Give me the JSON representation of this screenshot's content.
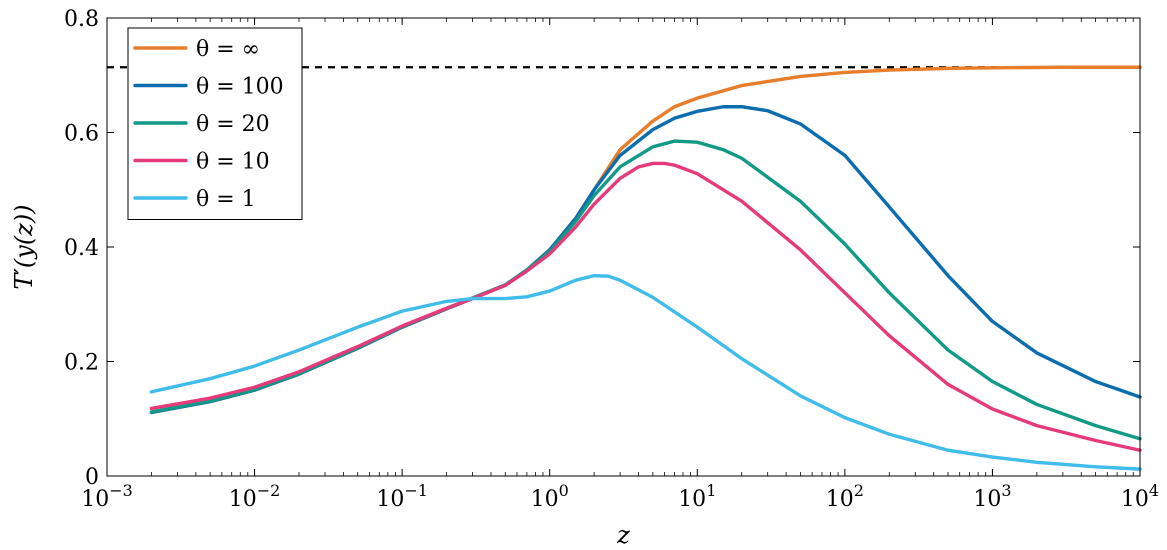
{
  "chart_data": {
    "type": "line",
    "xscale": "log",
    "xlabel": "z",
    "ylabel": "T′(y(z))",
    "xlim": [
      0.001,
      10000
    ],
    "ylim": [
      0,
      0.8
    ],
    "grid": false,
    "legend_position": "top-left",
    "x_ticks": [
      {
        "value": 0.001,
        "base": "10",
        "exp": "−3"
      },
      {
        "value": 0.01,
        "base": "10",
        "exp": "−2"
      },
      {
        "value": 0.1,
        "base": "10",
        "exp": "−1"
      },
      {
        "value": 1,
        "base": "10",
        "exp": "0"
      },
      {
        "value": 10,
        "base": "10",
        "exp": "1"
      },
      {
        "value": 100,
        "base": "10",
        "exp": "2"
      },
      {
        "value": 1000,
        "base": "10",
        "exp": "3"
      },
      {
        "value": 10000,
        "base": "10",
        "exp": "4"
      }
    ],
    "y_ticks": [
      {
        "value": 0,
        "label": "0"
      },
      {
        "value": 0.2,
        "label": "0.2"
      },
      {
        "value": 0.4,
        "label": "0.4"
      },
      {
        "value": 0.6,
        "label": "0.6"
      },
      {
        "value": 0.8,
        "label": "0.8"
      }
    ],
    "reference_line": {
      "y": 0.714,
      "style": "dashed",
      "color": "#000000"
    },
    "series": [
      {
        "name": "θ = ∞",
        "color": "#e87d2c",
        "points": [
          [
            0.002,
            0.111
          ],
          [
            0.005,
            0.13
          ],
          [
            0.01,
            0.15
          ],
          [
            0.02,
            0.178
          ],
          [
            0.05,
            0.223
          ],
          [
            0.1,
            0.26
          ],
          [
            0.2,
            0.292
          ],
          [
            0.3,
            0.31
          ],
          [
            0.5,
            0.333
          ],
          [
            0.7,
            0.36
          ],
          [
            1,
            0.395
          ],
          [
            1.5,
            0.45
          ],
          [
            2,
            0.5
          ],
          [
            3,
            0.57
          ],
          [
            5,
            0.62
          ],
          [
            7,
            0.645
          ],
          [
            10,
            0.66
          ],
          [
            20,
            0.682
          ],
          [
            50,
            0.698
          ],
          [
            100,
            0.705
          ],
          [
            200,
            0.709
          ],
          [
            500,
            0.712
          ],
          [
            1000,
            0.713
          ],
          [
            3000,
            0.714
          ],
          [
            10000,
            0.714
          ]
        ]
      },
      {
        "name": "θ = 100",
        "color": "#0b6dae",
        "points": [
          [
            0.002,
            0.111
          ],
          [
            0.005,
            0.13
          ],
          [
            0.01,
            0.15
          ],
          [
            0.02,
            0.178
          ],
          [
            0.05,
            0.223
          ],
          [
            0.1,
            0.26
          ],
          [
            0.2,
            0.292
          ],
          [
            0.3,
            0.31
          ],
          [
            0.5,
            0.333
          ],
          [
            0.7,
            0.36
          ],
          [
            1,
            0.395
          ],
          [
            1.5,
            0.45
          ],
          [
            2,
            0.5
          ],
          [
            3,
            0.56
          ],
          [
            5,
            0.605
          ],
          [
            7,
            0.625
          ],
          [
            10,
            0.637
          ],
          [
            15,
            0.645
          ],
          [
            20,
            0.645
          ],
          [
            30,
            0.638
          ],
          [
            50,
            0.615
          ],
          [
            100,
            0.56
          ],
          [
            200,
            0.47
          ],
          [
            500,
            0.35
          ],
          [
            1000,
            0.27
          ],
          [
            2000,
            0.215
          ],
          [
            5000,
            0.165
          ],
          [
            10000,
            0.138
          ]
        ]
      },
      {
        "name": "θ = 20",
        "color": "#119a86",
        "points": [
          [
            0.002,
            0.112
          ],
          [
            0.005,
            0.131
          ],
          [
            0.01,
            0.151
          ],
          [
            0.02,
            0.179
          ],
          [
            0.05,
            0.224
          ],
          [
            0.1,
            0.261
          ],
          [
            0.2,
            0.293
          ],
          [
            0.3,
            0.311
          ],
          [
            0.5,
            0.334
          ],
          [
            0.7,
            0.36
          ],
          [
            1,
            0.392
          ],
          [
            1.5,
            0.445
          ],
          [
            2,
            0.49
          ],
          [
            3,
            0.54
          ],
          [
            5,
            0.575
          ],
          [
            7,
            0.585
          ],
          [
            10,
            0.583
          ],
          [
            15,
            0.57
          ],
          [
            20,
            0.555
          ],
          [
            50,
            0.48
          ],
          [
            100,
            0.405
          ],
          [
            200,
            0.32
          ],
          [
            500,
            0.22
          ],
          [
            1000,
            0.165
          ],
          [
            2000,
            0.125
          ],
          [
            5000,
            0.088
          ],
          [
            10000,
            0.065
          ]
        ]
      },
      {
        "name": "θ = 10",
        "color": "#e53b7b",
        "points": [
          [
            0.002,
            0.118
          ],
          [
            0.005,
            0.136
          ],
          [
            0.01,
            0.155
          ],
          [
            0.02,
            0.182
          ],
          [
            0.05,
            0.226
          ],
          [
            0.1,
            0.262
          ],
          [
            0.2,
            0.293
          ],
          [
            0.3,
            0.31
          ],
          [
            0.5,
            0.333
          ],
          [
            0.7,
            0.358
          ],
          [
            1,
            0.388
          ],
          [
            1.5,
            0.435
          ],
          [
            2,
            0.475
          ],
          [
            3,
            0.52
          ],
          [
            4,
            0.54
          ],
          [
            5,
            0.546
          ],
          [
            6,
            0.546
          ],
          [
            7,
            0.543
          ],
          [
            10,
            0.528
          ],
          [
            20,
            0.48
          ],
          [
            50,
            0.395
          ],
          [
            100,
            0.32
          ],
          [
            200,
            0.245
          ],
          [
            500,
            0.16
          ],
          [
            1000,
            0.117
          ],
          [
            2000,
            0.088
          ],
          [
            5000,
            0.062
          ],
          [
            10000,
            0.045
          ]
        ]
      },
      {
        "name": "θ = 1",
        "color": "#3fbcea",
        "points": [
          [
            0.002,
            0.147
          ],
          [
            0.005,
            0.17
          ],
          [
            0.01,
            0.192
          ],
          [
            0.02,
            0.22
          ],
          [
            0.05,
            0.26
          ],
          [
            0.1,
            0.288
          ],
          [
            0.2,
            0.305
          ],
          [
            0.3,
            0.31
          ],
          [
            0.5,
            0.31
          ],
          [
            0.7,
            0.313
          ],
          [
            1,
            0.323
          ],
          [
            1.5,
            0.342
          ],
          [
            2,
            0.35
          ],
          [
            2.5,
            0.349
          ],
          [
            3,
            0.342
          ],
          [
            5,
            0.312
          ],
          [
            10,
            0.26
          ],
          [
            20,
            0.205
          ],
          [
            50,
            0.14
          ],
          [
            100,
            0.102
          ],
          [
            200,
            0.073
          ],
          [
            500,
            0.045
          ],
          [
            1000,
            0.033
          ],
          [
            2000,
            0.024
          ],
          [
            5000,
            0.016
          ],
          [
            10000,
            0.012
          ]
        ]
      }
    ]
  }
}
